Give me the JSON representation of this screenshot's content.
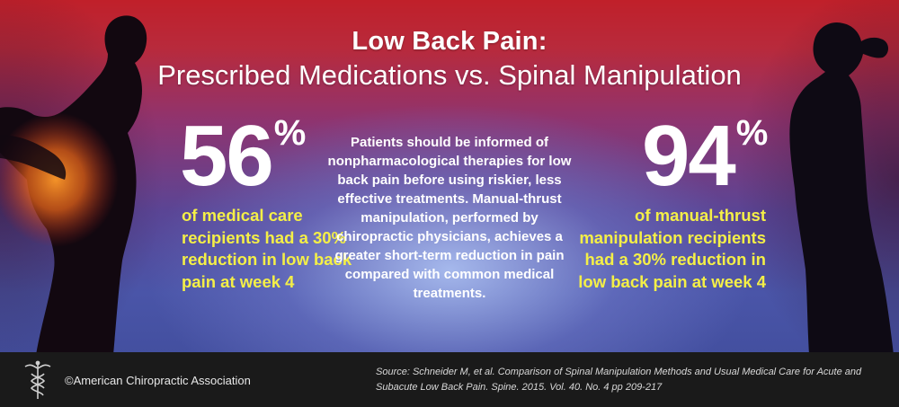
{
  "title": {
    "line1": "Low Back Pain:",
    "line2": "Prescribed Medications vs. Spinal Manipulation"
  },
  "left_stat": {
    "value": "56",
    "unit": "%",
    "description": "of medical care recipients had a 30% reduction in low back pain at week 4"
  },
  "right_stat": {
    "value": "94",
    "unit": "%",
    "description": "of manual-thrust manipulation recipients had a 30% reduction in low back pain at week 4"
  },
  "center_text": "Patients should be informed of nonpharmacological therapies for low back pain before using riskier, less effective treatments. Manual-thrust manipulation, performed by chiropractic physicians, achieves a greater short-term reduction in pain compared with common medical treatments.",
  "footer": {
    "copyright": "©American Chiropractic Association",
    "source": "Source:  Schneider M, et al. Comparison of Spinal Manipulation Methods and Usual Medical Care for Acute and Subacute Low Back Pain. Spine. 2015. Vol. 40. No. 4 pp 209-217"
  },
  "colors": {
    "accent_yellow": "#f4ef47",
    "pain_glow": "#e8641a",
    "footer_bg": "#1a1a1a"
  }
}
